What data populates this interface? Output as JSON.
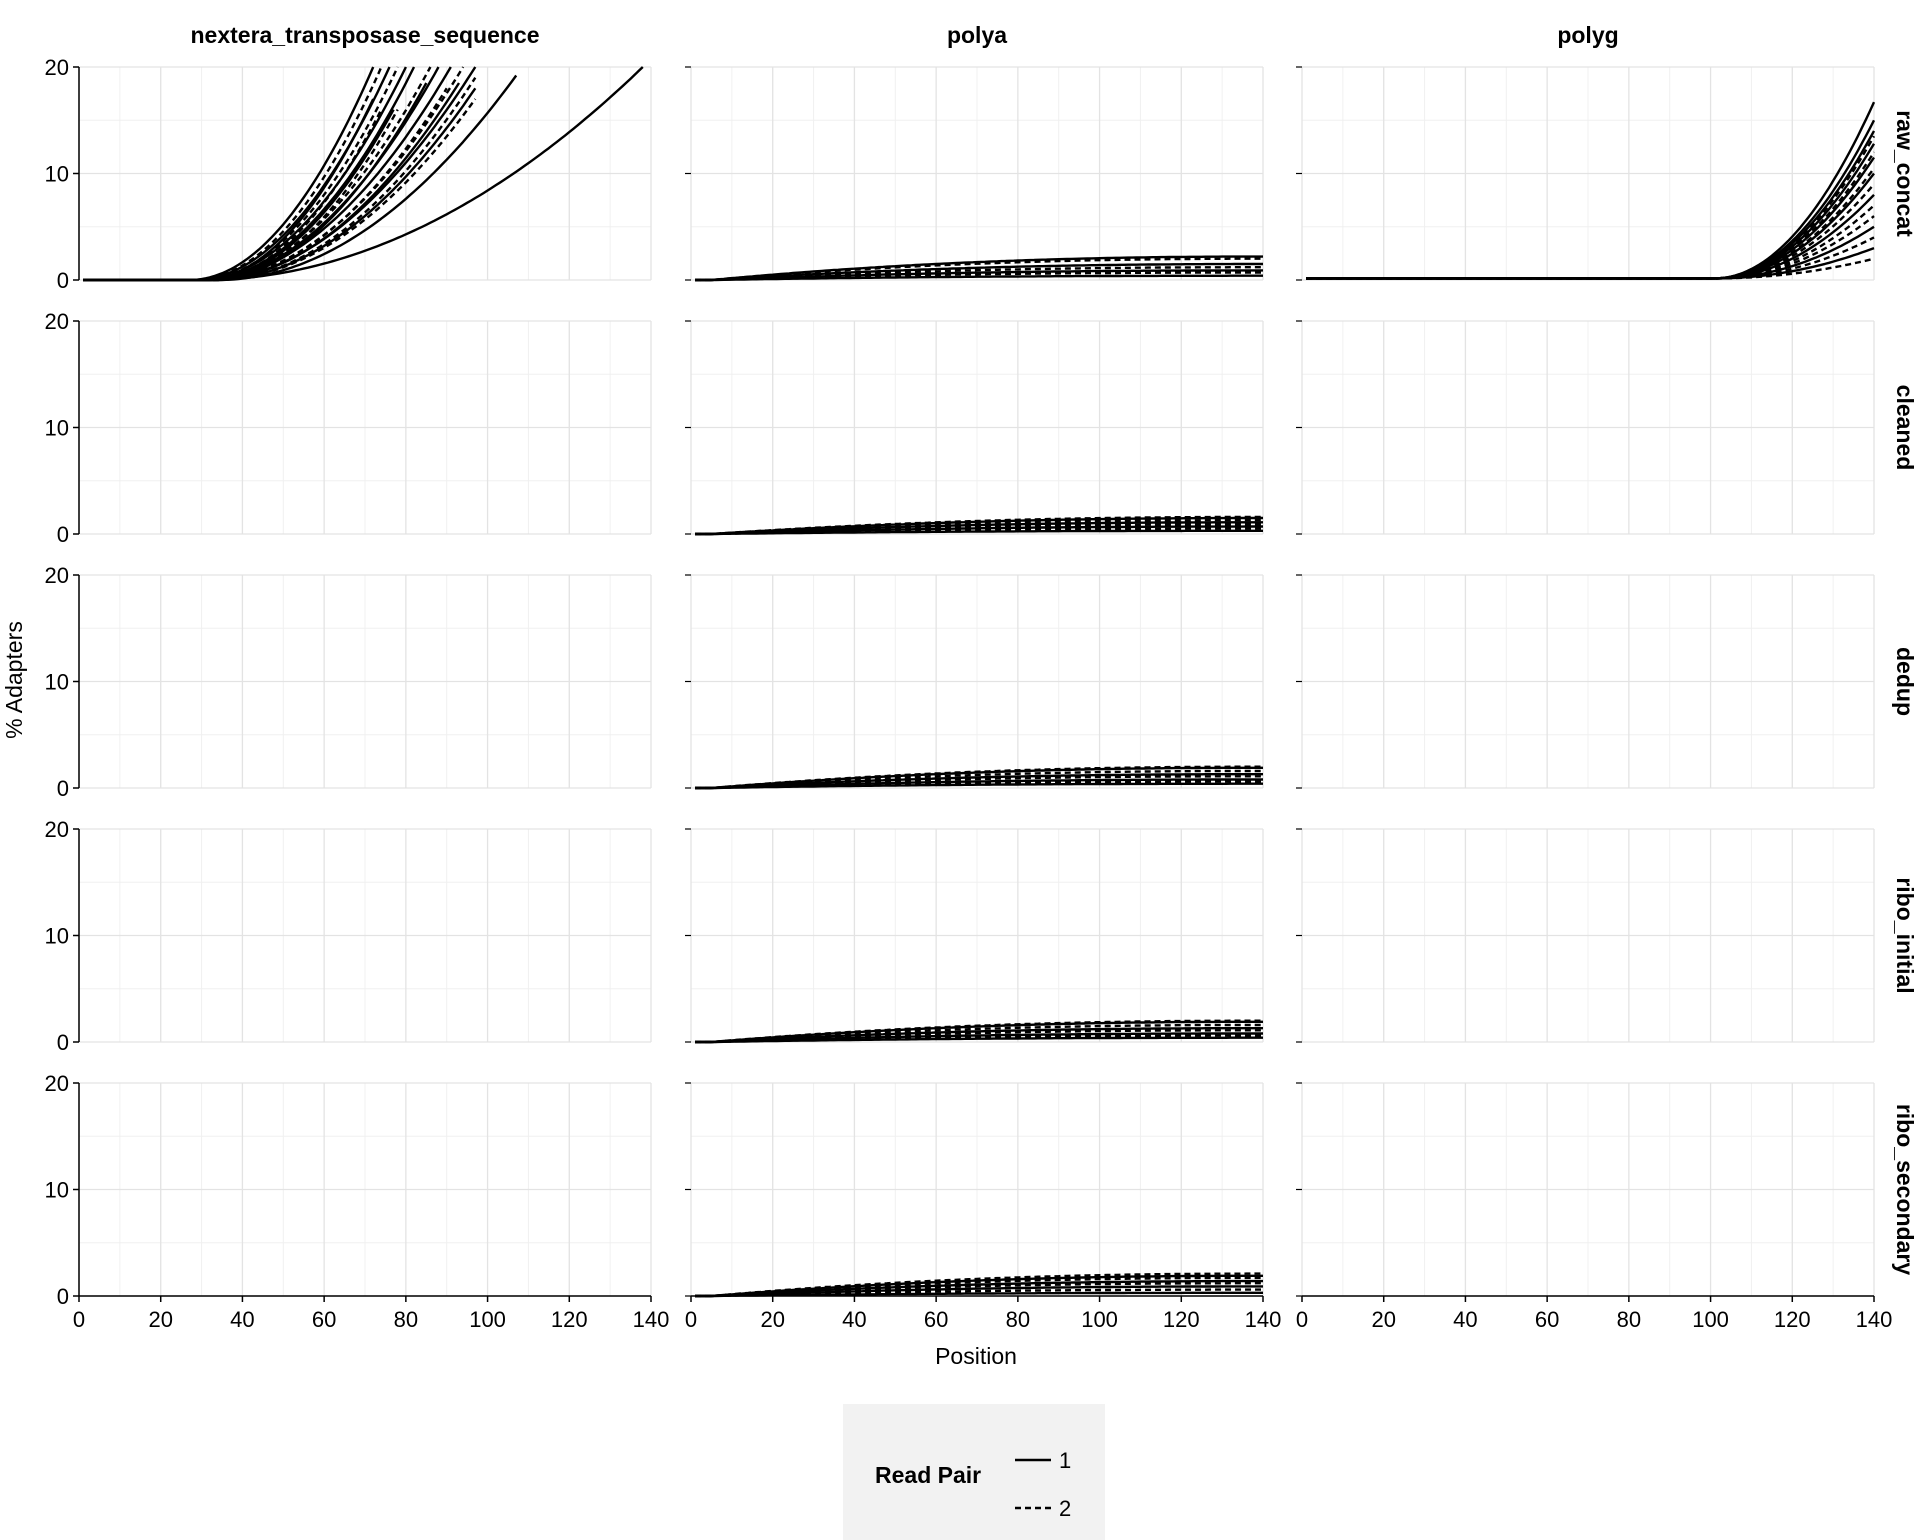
{
  "chart_data": {
    "type": "line",
    "facet_columns": [
      "nextera_transposase_sequence",
      "polya",
      "polyg"
    ],
    "facet_rows": [
      "raw_concat",
      "cleaned",
      "dedup",
      "ribo_initial",
      "ribo_secondary"
    ],
    "xlabel": "Position",
    "ylabel": "% Adapters",
    "xlim": [
      0,
      140
    ],
    "ylim": [
      0,
      20
    ],
    "xticks": [
      "0",
      "20",
      "40",
      "60",
      "80",
      "100",
      "120",
      "140"
    ],
    "yticks": [
      "0",
      "10",
      "20"
    ],
    "grid": true,
    "legend": {
      "title": "Read Pair",
      "placement": "bottom",
      "entries": [
        {
          "label": "1",
          "linestyle": "solid"
        },
        {
          "label": "2",
          "linestyle": "dashed"
        }
      ]
    },
    "panels": [
      {
        "column": "nextera_transposase_sequence",
        "row": "raw_concat",
        "series_model": "rise",
        "series": [
          {
            "read_pair": "1",
            "onset": 27,
            "end_x": 72,
            "end_y": 20
          },
          {
            "read_pair": "2",
            "onset": 28,
            "end_x": 74,
            "end_y": 20
          },
          {
            "read_pair": "1",
            "onset": 28,
            "end_x": 76,
            "end_y": 20
          },
          {
            "read_pair": "2",
            "onset": 29,
            "end_x": 78,
            "end_y": 20
          },
          {
            "read_pair": "1",
            "onset": 29,
            "end_x": 80,
            "end_y": 20
          },
          {
            "read_pair": "1",
            "onset": 30,
            "end_x": 82,
            "end_y": 20
          },
          {
            "read_pair": "2",
            "onset": 30,
            "end_x": 86,
            "end_y": 20
          },
          {
            "read_pair": "1",
            "onset": 30,
            "end_x": 88,
            "end_y": 20
          },
          {
            "read_pair": "1",
            "onset": 30,
            "end_x": 91,
            "end_y": 20
          },
          {
            "read_pair": "2",
            "onset": 31,
            "end_x": 94,
            "end_y": 20
          },
          {
            "read_pair": "1",
            "onset": 31,
            "end_x": 97,
            "end_y": 20
          },
          {
            "read_pair": "1",
            "onset": 30,
            "end_x": 72,
            "end_y": 17
          },
          {
            "read_pair": "2",
            "onset": 31,
            "end_x": 74,
            "end_y": 16
          },
          {
            "read_pair": "1",
            "onset": 31,
            "end_x": 77,
            "end_y": 16
          },
          {
            "read_pair": "2",
            "onset": 32,
            "end_x": 78,
            "end_y": 16
          },
          {
            "read_pair": "1",
            "onset": 32,
            "end_x": 85,
            "end_y": 18.5
          },
          {
            "read_pair": "2",
            "onset": 32,
            "end_x": 90,
            "end_y": 18
          },
          {
            "read_pair": "1",
            "onset": 32,
            "end_x": 93,
            "end_y": 18.5
          },
          {
            "read_pair": "2",
            "onset": 33,
            "end_x": 97,
            "end_y": 17
          },
          {
            "read_pair": "1",
            "onset": 33,
            "end_x": 97,
            "end_y": 18
          },
          {
            "read_pair": "2",
            "onset": 33,
            "end_x": 97,
            "end_y": 19
          },
          {
            "read_pair": "1",
            "onset": 34,
            "end_x": 107,
            "end_y": 19.2
          },
          {
            "read_pair": "1",
            "onset": 30,
            "end_x": 138,
            "end_y": 20
          }
        ]
      },
      {
        "column": "polya",
        "row": "raw_concat",
        "series_model": "saturating",
        "series": [
          {
            "read_pair": "1",
            "end_y": 2.2
          },
          {
            "read_pair": "2",
            "end_y": 2.0
          },
          {
            "read_pair": "1",
            "end_y": 1.5
          },
          {
            "read_pair": "2",
            "end_y": 1.2
          },
          {
            "read_pair": "1",
            "end_y": 0.9
          },
          {
            "read_pair": "2",
            "end_y": 0.7
          },
          {
            "read_pair": "1",
            "end_y": 0.4
          }
        ]
      },
      {
        "column": "polyg",
        "row": "raw_concat",
        "series_model": "late_rise",
        "series": [
          {
            "read_pair": "1",
            "end_y": 16.7
          },
          {
            "read_pair": "1",
            "end_y": 15.0
          },
          {
            "read_pair": "1",
            "end_y": 14.0
          },
          {
            "read_pair": "2",
            "end_y": 13.5
          },
          {
            "read_pair": "1",
            "end_y": 12.8
          },
          {
            "read_pair": "2",
            "end_y": 12.0
          },
          {
            "read_pair": "1",
            "end_y": 11.5
          },
          {
            "read_pair": "2",
            "end_y": 10.5
          },
          {
            "read_pair": "1",
            "end_y": 10.0
          },
          {
            "read_pair": "2",
            "end_y": 9.0
          },
          {
            "read_pair": "1",
            "end_y": 8.0
          },
          {
            "read_pair": "2",
            "end_y": 7.0
          },
          {
            "read_pair": "2",
            "end_y": 6.0
          },
          {
            "read_pair": "1",
            "end_y": 5.0
          },
          {
            "read_pair": "2",
            "end_y": 4.0
          },
          {
            "read_pair": "1",
            "end_y": 3.0
          },
          {
            "read_pair": "2",
            "end_y": 2.0
          }
        ]
      },
      {
        "column": "polya",
        "row": "cleaned",
        "series_model": "saturating",
        "series": [
          {
            "read_pair": "2",
            "end_y": 1.6
          },
          {
            "read_pair": "1",
            "end_y": 1.5
          },
          {
            "read_pair": "2",
            "end_y": 1.3
          },
          {
            "read_pair": "1",
            "end_y": 1.1
          },
          {
            "read_pair": "2",
            "end_y": 0.9
          },
          {
            "read_pair": "1",
            "end_y": 0.7
          },
          {
            "read_pair": "2",
            "end_y": 0.5
          },
          {
            "read_pair": "1",
            "end_y": 0.3
          }
        ]
      },
      {
        "column": "polya",
        "row": "dedup",
        "series_model": "saturating",
        "series": [
          {
            "read_pair": "2",
            "end_y": 2.0
          },
          {
            "read_pair": "1",
            "end_y": 1.9
          },
          {
            "read_pair": "2",
            "end_y": 1.6
          },
          {
            "read_pair": "1",
            "end_y": 1.3
          },
          {
            "read_pair": "2",
            "end_y": 1.1
          },
          {
            "read_pair": "1",
            "end_y": 0.8
          },
          {
            "read_pair": "2",
            "end_y": 0.6
          },
          {
            "read_pair": "1",
            "end_y": 0.4
          }
        ]
      },
      {
        "column": "polya",
        "row": "ribo_initial",
        "series_model": "saturating",
        "series": [
          {
            "read_pair": "2",
            "end_y": 2.0
          },
          {
            "read_pair": "1",
            "end_y": 1.9
          },
          {
            "read_pair": "2",
            "end_y": 1.6
          },
          {
            "read_pair": "1",
            "end_y": 1.3
          },
          {
            "read_pair": "2",
            "end_y": 1.1
          },
          {
            "read_pair": "1",
            "end_y": 0.8
          },
          {
            "read_pair": "2",
            "end_y": 0.6
          },
          {
            "read_pair": "1",
            "end_y": 0.4
          }
        ]
      },
      {
        "column": "polya",
        "row": "ribo_secondary",
        "series_model": "saturating",
        "series": [
          {
            "read_pair": "2",
            "end_y": 2.1
          },
          {
            "read_pair": "1",
            "end_y": 1.9
          },
          {
            "read_pair": "2",
            "end_y": 1.7
          },
          {
            "read_pair": "1",
            "end_y": 1.4
          },
          {
            "read_pair": "2",
            "end_y": 1.2
          },
          {
            "read_pair": "1",
            "end_y": 0.9
          },
          {
            "read_pair": "2",
            "end_y": 0.6
          },
          {
            "read_pair": "1",
            "end_y": 0.3
          }
        ]
      }
    ]
  },
  "colors": {
    "line": "#000000",
    "grid_major": "#e3e3e3",
    "grid_minor": "#f0f0f0",
    "legend_background": "#f2f2f2"
  }
}
